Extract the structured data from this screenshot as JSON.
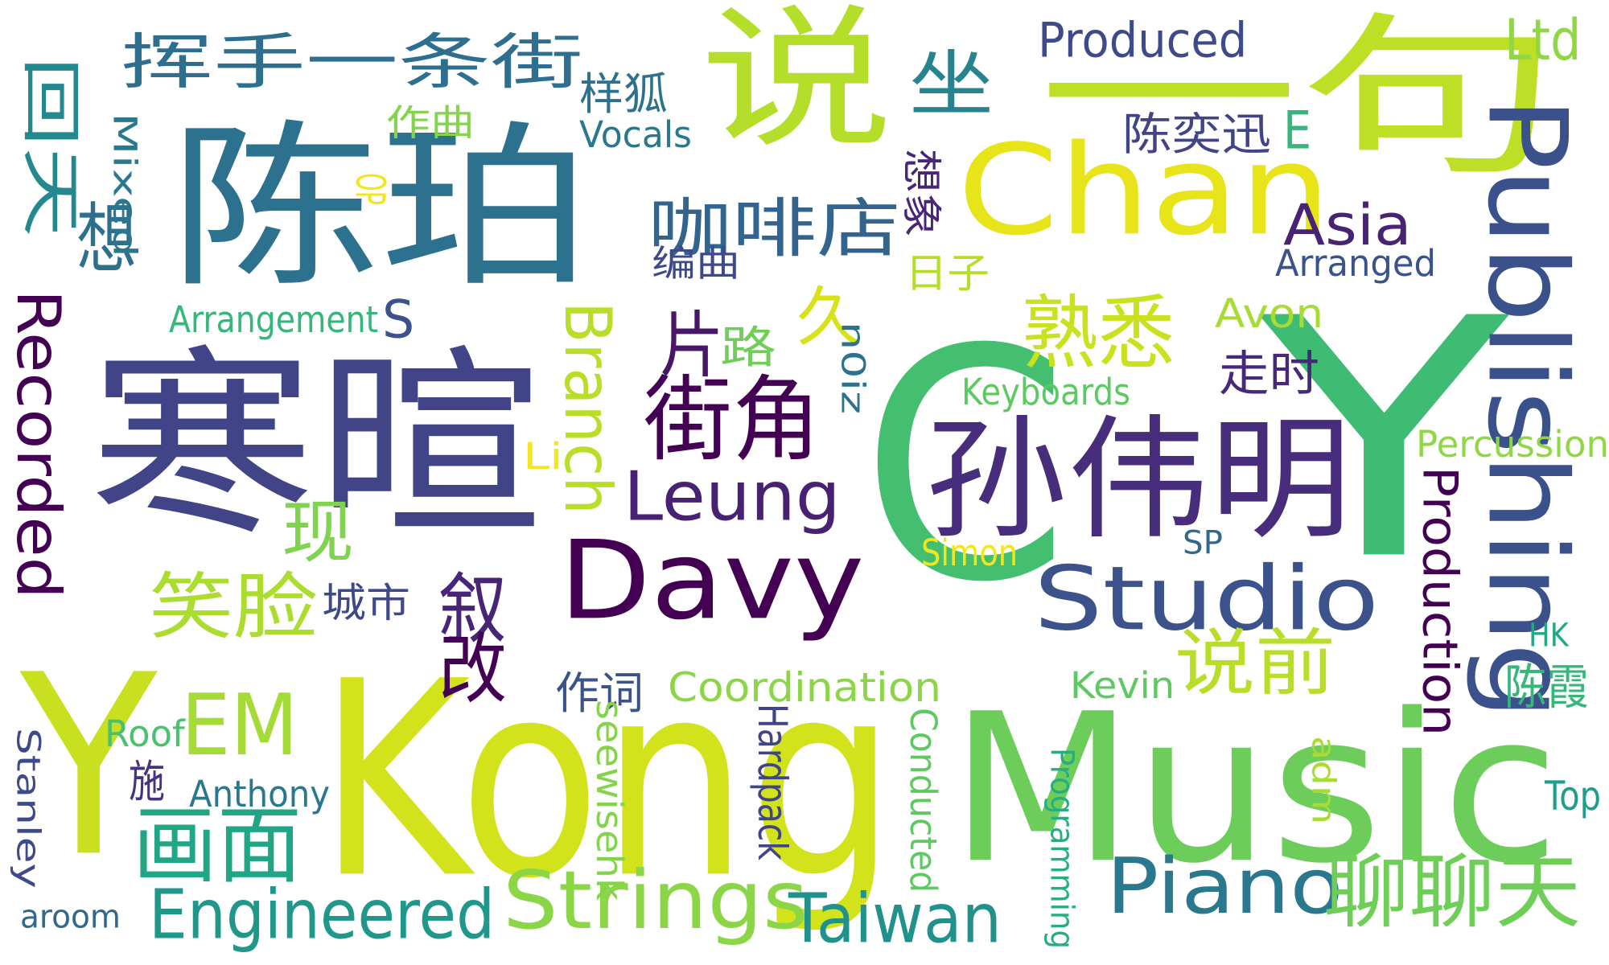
{
  "words": [
    {
      "text": "Kong",
      "color": "#d2e21b"
    },
    {
      "text": "Music",
      "color": "#6ccd5a"
    },
    {
      "text": "C",
      "color": "#44bf70"
    },
    {
      "text": "Y",
      "color": "#3fbc73"
    },
    {
      "text": "Y",
      "color": "#c8e020"
    },
    {
      "text": "寒暄",
      "color": "#414487"
    },
    {
      "text": "陈珀",
      "color": "#2c728e"
    },
    {
      "text": "一句",
      "color": "#bddf26"
    },
    {
      "text": "说",
      "color": "#b5de2b"
    },
    {
      "text": "Chan",
      "color": "#e7e419"
    },
    {
      "text": "孙伟明",
      "color": "#472d7b"
    },
    {
      "text": "Davy",
      "color": "#440154"
    },
    {
      "text": "Studio",
      "color": "#3b528b"
    },
    {
      "text": "Publishing",
      "color": "#3b518b"
    },
    {
      "text": "Leung",
      "color": "#482173"
    },
    {
      "text": "Piano",
      "color": "#2a788e"
    },
    {
      "text": "聊聊天",
      "color": "#6ece58"
    },
    {
      "text": "EM",
      "color": "#a5db36"
    },
    {
      "text": "Strings",
      "color": "#8bd646"
    },
    {
      "text": "Taiwan",
      "color": "#21918c"
    },
    {
      "text": "Engineered",
      "color": "#1f988b"
    },
    {
      "text": "画面",
      "color": "#21a685"
    },
    {
      "text": "熟悉",
      "color": "#cae11f"
    },
    {
      "text": "Recorded",
      "color": "#440154"
    },
    {
      "text": "说前",
      "color": "#b8de29"
    },
    {
      "text": "咖啡店",
      "color": "#32648e"
    },
    {
      "text": "挥手一条街",
      "color": "#2e6e8e"
    },
    {
      "text": "回天",
      "color": "#23898e"
    },
    {
      "text": "坐",
      "color": "#25848e"
    },
    {
      "text": "街角",
      "color": "#440154"
    },
    {
      "text": "Produced",
      "color": "#3e4a89"
    },
    {
      "text": "Ltd",
      "color": "#90d743"
    },
    {
      "text": "Asia",
      "color": "#482374"
    },
    {
      "text": "笑脸",
      "color": "#addc30"
    },
    {
      "text": "久",
      "color": "#d8e219"
    },
    {
      "text": "片",
      "color": "#481769"
    },
    {
      "text": "路",
      "color": "#6ece58"
    },
    {
      "text": "想",
      "color": "#2d708e"
    },
    {
      "text": "叙",
      "color": "#482576"
    },
    {
      "text": "改",
      "color": "#440154"
    },
    {
      "text": "现",
      "color": "#7fd34e"
    },
    {
      "text": "Branch",
      "color": "#b8de29"
    },
    {
      "text": "Production",
      "color": "#440154"
    },
    {
      "text": "Coordination",
      "color": "#8bd646"
    },
    {
      "text": "Arrangement",
      "color": "#35b779"
    },
    {
      "text": "Arranged",
      "color": "#3a538b"
    },
    {
      "text": "Keyboards",
      "color": "#5ec962"
    },
    {
      "text": "Percussion",
      "color": "#8fd744"
    },
    {
      "text": "Avon",
      "color": "#a8db34"
    },
    {
      "text": "走时",
      "color": "#482878"
    },
    {
      "text": "陈奕迅",
      "color": "#414487"
    },
    {
      "text": "E",
      "color": "#35b779"
    },
    {
      "text": "Vocals",
      "color": "#2a788e"
    },
    {
      "text": "样狐",
      "color": "#2c728e"
    },
    {
      "text": "作曲",
      "color": "#84d44b"
    },
    {
      "text": "编曲",
      "color": "#3e4989"
    },
    {
      "text": "日子",
      "color": "#b5de2b"
    },
    {
      "text": "想象",
      "color": "#482576"
    },
    {
      "text": "Mixed",
      "color": "#2a788e"
    },
    {
      "text": "OP",
      "color": "#f1e51d"
    },
    {
      "text": "S",
      "color": "#3b528b"
    },
    {
      "text": "n0iz",
      "color": "#2c728e"
    },
    {
      "text": "Li",
      "color": "#f4e61e"
    },
    {
      "text": "Simon",
      "color": "#f4e61e"
    },
    {
      "text": "SP",
      "color": "#31688e"
    },
    {
      "text": "城市",
      "color": "#3e4989"
    },
    {
      "text": "Kevin",
      "color": "#5ec962"
    },
    {
      "text": "作词",
      "color": "#3b528b"
    },
    {
      "text": "Roof",
      "color": "#4ac16d"
    },
    {
      "text": "施",
      "color": "#46337f"
    },
    {
      "text": "Anthony",
      "color": "#2a788e"
    },
    {
      "text": "Stanley",
      "color": "#3e4989"
    },
    {
      "text": "aroom",
      "color": "#31688e"
    },
    {
      "text": "seewisehk",
      "color": "#84d44b"
    },
    {
      "text": "Hardpack",
      "color": "#414487"
    },
    {
      "text": "Conducted",
      "color": "#5ec962"
    },
    {
      "text": "Programming",
      "color": "#27ad81"
    },
    {
      "text": "adm",
      "color": "#a8db34"
    },
    {
      "text": "Top",
      "color": "#1f9e89"
    },
    {
      "text": "HK",
      "color": "#22a884"
    },
    {
      "text": "陈霞",
      "color": "#35b779"
    }
  ]
}
